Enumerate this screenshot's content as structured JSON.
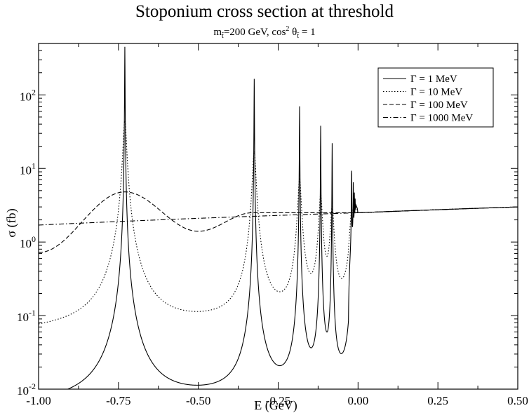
{
  "chart_data": {
    "type": "line",
    "title": "Stoponium cross section at threshold",
    "subtitle": {
      "m_symbol": "m",
      "m_sub": "t̃",
      "m_value": "=200 GeV, cos",
      "exp": "2",
      "theta": " θ",
      "theta_sub": "t̃",
      "tail": " = 1"
    },
    "xlabel": "E (GeV)",
    "ylabel": "σ (fb)",
    "xlim": [
      -1.0,
      0.5
    ],
    "ylim": [
      0.01,
      500
    ],
    "yscale": "log",
    "x_ticks": [
      "-1.00",
      "-0.75",
      "-0.50",
      "-0.25",
      "0.00",
      "0.25",
      "0.50"
    ],
    "x_tick_values": [
      -1.0,
      -0.75,
      -0.5,
      -0.25,
      0.0,
      0.25,
      0.5
    ],
    "y_ticks": [
      {
        "base": "10",
        "exp": "-2",
        "value": 0.01
      },
      {
        "base": "10",
        "exp": "-1",
        "value": 0.1
      },
      {
        "base": "10",
        "exp": "0",
        "value": 1
      },
      {
        "base": "10",
        "exp": "1",
        "value": 10
      },
      {
        "base": "10",
        "exp": "2",
        "value": 100
      }
    ],
    "legend_position": "top-right",
    "series": [
      {
        "name": "Γ =  1 MeV",
        "style": "solid",
        "gamma": 0.001
      },
      {
        "name": "Γ =  10 MeV",
        "style": "dotted",
        "gamma": 0.01
      },
      {
        "name": "Γ =  100 MeV",
        "style": "dashed",
        "gamma": 0.1
      },
      {
        "name": "Γ =  1000 MeV",
        "style": "dashdot",
        "gamma": 1.0
      }
    ],
    "peaks": [
      {
        "x": -0.73,
        "y_gamma_1MeV": 450,
        "y_gamma_10MeV": 45
      },
      {
        "x": -0.325,
        "y_gamma_1MeV": 165,
        "y_gamma_10MeV": 17
      },
      {
        "x": -0.183,
        "y_gamma_1MeV": 70,
        "y_gamma_10MeV": 7
      },
      {
        "x": -0.117,
        "y_gamma_1MeV": 38,
        "y_gamma_10MeV": 4.2
      },
      {
        "x": -0.081,
        "y_gamma_1MeV": 22,
        "y_gamma_10MeV": 2.8
      }
    ],
    "minima_1MeV": [
      {
        "x": -0.5,
        "y": 0.017
      },
      {
        "x": -0.245,
        "y": 0.052
      },
      {
        "x": -0.143,
        "y": 0.12
      }
    ],
    "continuum": [
      {
        "x": -1.0,
        "y": 1.7
      },
      {
        "x": 0.0,
        "y": 2.5
      },
      {
        "x": 0.5,
        "y": 3.0
      }
    ],
    "broad_100MeV": [
      {
        "x": -1.0,
        "y": 0.72
      },
      {
        "x": -0.73,
        "y": 4.8
      },
      {
        "x": -0.5,
        "y": 1.4
      },
      {
        "x": -0.33,
        "y": 2.5
      },
      {
        "x": 0.0,
        "y": 2.5
      }
    ]
  }
}
